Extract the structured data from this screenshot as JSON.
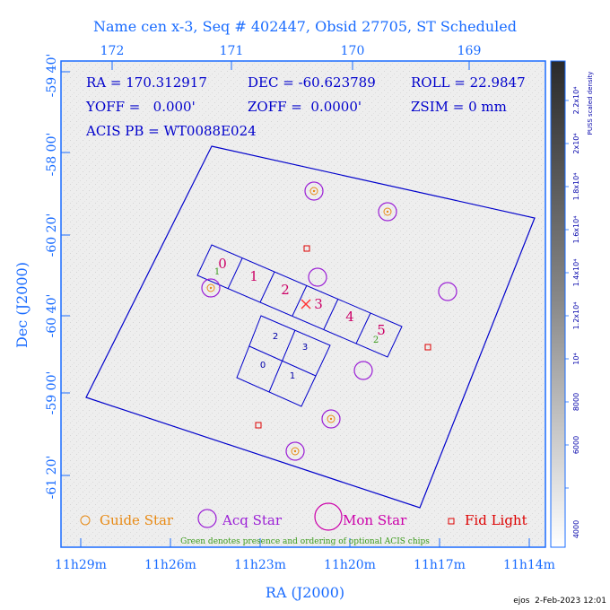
{
  "title": "Name cen x-3, Seq # 402447, Obsid 27705, ST Scheduled",
  "top_axis_ticks": [
    "172",
    "171",
    "170",
    "169"
  ],
  "bottom_axis_ticks": [
    "11h29m",
    "11h26m",
    "11h23m",
    "11h20m",
    "11h17m",
    "11h14m"
  ],
  "left_axis_ticks": [
    "-59 40'",
    "-58 00'",
    "-60 20'",
    "-60 40'",
    "-59 00'",
    "-59 00'",
    "-61 20'"
  ],
  "x_axis_label": "RA (J2000)",
  "y_axis_label": "Dec (J2000)",
  "info": {
    "ra": "RA = 170.312917",
    "dec": "DEC = -60.623789",
    "roll": "ROLL = 22.9847",
    "yoff": "YOFF =   0.000'",
    "zoff": "ZOFF =  0.0000'",
    "zsim": "ZSIM = 0 mm",
    "acis_pb": "ACIS PB = WT0088E024"
  },
  "chips_s": [
    "0",
    "1",
    "2",
    "3",
    "4",
    "5"
  ],
  "chips_i": [
    "2",
    "3",
    "0",
    "1"
  ],
  "optional_chip_order": [
    "1",
    "2"
  ],
  "legend": {
    "guide": "Guide Star",
    "acq": "Acq Star",
    "mon": "Mon Star",
    "fid": "Fid Light",
    "note": "Green denotes presence and ordering of optional ACIS chips"
  },
  "colorbar": {
    "label": "PUSS scaled density",
    "ticks": [
      "2.2x10⁴",
      "2x10⁴",
      "1.8x10⁴",
      "1.6x10⁴",
      "1.4x10⁴",
      "1.2x10⁴",
      "10⁴",
      "8000",
      "6000",
      "4000"
    ]
  },
  "footer": "ejos  2-Feb-2023 12:01",
  "colors": {
    "axis": "#1a6cff",
    "field": "#0000cc",
    "chip_label": "#cc0066",
    "guide": "#e88a14",
    "acq": "#9b1fd6",
    "mon": "#cc00aa",
    "fid": "#dd0000",
    "optional": "#3a9a1a"
  }
}
